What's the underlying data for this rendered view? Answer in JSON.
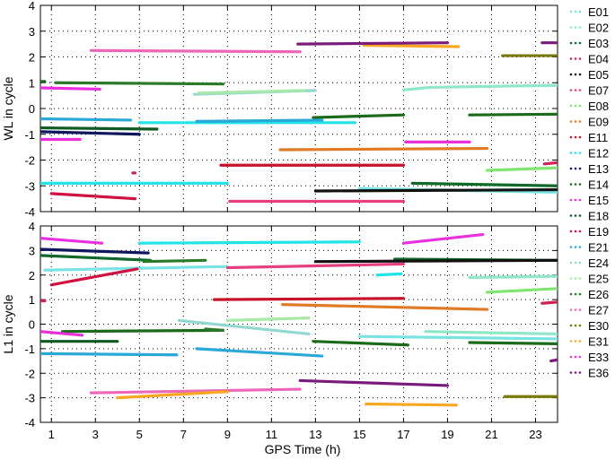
{
  "figure": {
    "xlabel": "GPS Time (h)",
    "xticks": [
      1,
      3,
      5,
      7,
      9,
      11,
      13,
      15,
      17,
      19,
      21,
      23
    ],
    "xlim": [
      0.5,
      24
    ]
  },
  "legend": [
    {
      "name": "E01",
      "color": "#79e2e2"
    },
    {
      "name": "E02",
      "color": "#8ee8c6"
    },
    {
      "name": "E03",
      "color": "#0f6a2a"
    },
    {
      "name": "E04",
      "color": "#cc2255"
    },
    {
      "name": "E05",
      "color": "#111111"
    },
    {
      "name": "E07",
      "color": "#e63f80"
    },
    {
      "name": "E08",
      "color": "#7ee66e"
    },
    {
      "name": "E09",
      "color": "#e07a25"
    },
    {
      "name": "E11",
      "color": "#c8122a"
    },
    {
      "name": "E12",
      "color": "#22e3e8"
    },
    {
      "name": "E13",
      "color": "#10165e"
    },
    {
      "name": "E14",
      "color": "#1a6a1a"
    },
    {
      "name": "E15",
      "color": "#e830d8"
    },
    {
      "name": "E18",
      "color": "#0e5a23"
    },
    {
      "name": "E19",
      "color": "#d01040"
    },
    {
      "name": "E21",
      "color": "#2aa8d8"
    },
    {
      "name": "E24",
      "color": "#90d8d0"
    },
    {
      "name": "E25",
      "color": "#a8e8a8"
    },
    {
      "name": "E26",
      "color": "#2a7a2a"
    },
    {
      "name": "E27",
      "color": "#ee66b8"
    },
    {
      "name": "E30",
      "color": "#7a7a0a"
    },
    {
      "name": "E31",
      "color": "#f8a820"
    },
    {
      "name": "E33",
      "color": "#e830e0"
    },
    {
      "name": "E36",
      "color": "#7a1a7a"
    }
  ],
  "chart_data": [
    {
      "type": "scatter",
      "title": "",
      "xlabel": "",
      "ylabel": "WL in cycle",
      "xlim": [
        0.5,
        24
      ],
      "ylim": [
        -4,
        4
      ],
      "yticks": [
        -4,
        -3,
        -2,
        -1,
        0,
        1,
        2,
        3,
        4
      ],
      "grid": true,
      "series": [
        {
          "name": "E01",
          "segments": [
            [
              [
                15.0,
                -3.1
              ],
              [
                24.0,
                -3.25
              ]
            ]
          ]
        },
        {
          "name": "E02",
          "segments": [
            [
              [
                17.0,
                0.72
              ],
              [
                18.2,
                0.82
              ]
            ],
            [
              [
                18.2,
                0.82
              ],
              [
                24.0,
                0.9
              ]
            ]
          ]
        },
        {
          "name": "E03",
          "segments": [
            [
              [
                17.4,
                -2.9
              ],
              [
                24.0,
                -3.0
              ]
            ]
          ]
        },
        {
          "name": "E04",
          "segments": [
            [
              [
                4.7,
                -2.5
              ],
              [
                4.8,
                -2.5
              ]
            ],
            [
              [
                23.4,
                -2.15
              ],
              [
                24.0,
                -2.1
              ]
            ]
          ]
        },
        {
          "name": "E05",
          "segments": [
            [
              [
                13.0,
                -3.2
              ],
              [
                24.0,
                -3.15
              ]
            ]
          ]
        },
        {
          "name": "E07",
          "segments": [
            [
              [
                9.1,
                -3.6
              ],
              [
                17.0,
                -3.6
              ]
            ]
          ]
        },
        {
          "name": "E08",
          "segments": [
            [
              [
                20.8,
                -2.4
              ],
              [
                24.0,
                -2.3
              ]
            ]
          ]
        },
        {
          "name": "E09",
          "segments": [
            [
              [
                11.4,
                -1.6
              ],
              [
                20.8,
                -1.55
              ]
            ]
          ]
        },
        {
          "name": "E11",
          "segments": [
            [
              [
                8.7,
                -2.2
              ],
              [
                17.0,
                -2.2
              ]
            ]
          ]
        },
        {
          "name": "E12",
          "segments": [
            [
              [
                0.5,
                -2.9
              ],
              [
                9.0,
                -2.9
              ]
            ]
          ]
        },
        {
          "name": "E13",
          "segments": [
            [
              [
                0.5,
                -0.9
              ],
              [
                5.0,
                -1.0
              ]
            ]
          ]
        },
        {
          "name": "E14",
          "segments": [
            [
              [
                0.5,
                1.05
              ],
              [
                0.7,
                1.05
              ]
            ],
            [
              [
                12.9,
                -0.35
              ],
              [
                17.0,
                -0.25
              ]
            ],
            [
              [
                20.0,
                -0.25
              ],
              [
                24.0,
                -0.22
              ]
            ]
          ]
        },
        {
          "name": "E15",
          "segments": [
            [
              [
                0.5,
                -1.2
              ],
              [
                2.3,
                -1.2
              ]
            ],
            [
              [
                17.1,
                -1.3
              ],
              [
                20.0,
                -1.3
              ]
            ]
          ]
        },
        {
          "name": "E18",
          "segments": [
            [
              [
                0.5,
                -0.75
              ],
              [
                5.8,
                -0.8
              ]
            ]
          ]
        },
        {
          "name": "E19",
          "segments": [
            [
              [
                1.0,
                -3.3
              ],
              [
                4.8,
                -3.5
              ]
            ]
          ]
        },
        {
          "name": "E21",
          "segments": [
            [
              [
                0.5,
                -0.4
              ],
              [
                4.6,
                -0.45
              ]
            ]
          ]
        },
        {
          "name": "E24",
          "segments": [
            [
              [
                7.5,
                0.55
              ],
              [
                13.0,
                0.7
              ]
            ]
          ]
        },
        {
          "name": "E25",
          "segments": [
            [
              [
                7.7,
                0.6
              ],
              [
                12.5,
                0.7
              ]
            ]
          ]
        },
        {
          "name": "E26",
          "segments": [
            [
              [
                1.2,
                1.0
              ],
              [
                8.8,
                0.95
              ]
            ]
          ]
        },
        {
          "name": "E27",
          "segments": [
            [
              [
                2.8,
                2.25
              ],
              [
                12.3,
                2.2
              ]
            ]
          ]
        },
        {
          "name": "E30",
          "segments": [
            [
              [
                21.5,
                2.05
              ],
              [
                24.0,
                2.05
              ]
            ]
          ]
        },
        {
          "name": "E31",
          "segments": [
            [
              [
                15.2,
                2.45
              ],
              [
                19.5,
                2.4
              ]
            ]
          ]
        },
        {
          "name": "E33",
          "segments": [
            [
              [
                0.5,
                0.8
              ],
              [
                3.2,
                0.75
              ]
            ]
          ]
        },
        {
          "name": "E36",
          "segments": [
            [
              [
                12.2,
                2.5
              ],
              [
                19.0,
                2.55
              ]
            ],
            [
              [
                23.3,
                2.55
              ],
              [
                24.0,
                2.55
              ]
            ]
          ]
        },
        {
          "name": "E12",
          "segments": [
            [
              [
                5.0,
                -0.55
              ],
              [
                14.8,
                -0.55
              ]
            ]
          ]
        },
        {
          "name": "E21",
          "segments": [
            [
              [
                7.6,
                -0.5
              ],
              [
                13.3,
                -0.45
              ]
            ]
          ]
        }
      ]
    },
    {
      "type": "scatter",
      "title": "",
      "xlabel": "GPS Time (h)",
      "ylabel": "L1 in cycle",
      "xlim": [
        0.5,
        24
      ],
      "ylim": [
        -4,
        4
      ],
      "yticks": [
        -4,
        -3,
        -2,
        -1,
        0,
        1,
        2,
        3,
        4
      ],
      "grid": true,
      "series": [
        {
          "name": "E01",
          "segments": [
            [
              [
                0.7,
                2.2
              ],
              [
                9.0,
                2.35
              ]
            ],
            [
              [
                15.0,
                -0.5
              ],
              [
                24.0,
                -0.6
              ]
            ]
          ]
        },
        {
          "name": "E02",
          "segments": [
            [
              [
                18.0,
                -0.3
              ],
              [
                24.0,
                -0.4
              ]
            ],
            [
              [
                20.0,
                1.9
              ],
              [
                24.0,
                1.95
              ]
            ]
          ]
        },
        {
          "name": "E03",
          "segments": [
            [
              [
                0.5,
                2.8
              ],
              [
                5.5,
                2.6
              ]
            ],
            [
              [
                16.6,
                2.65
              ],
              [
                24.0,
                2.6
              ]
            ]
          ]
        },
        {
          "name": "E04",
          "segments": [
            [
              [
                0.5,
                0.95
              ],
              [
                0.7,
                0.95
              ]
            ],
            [
              [
                23.3,
                0.85
              ],
              [
                24.0,
                0.9
              ]
            ]
          ]
        },
        {
          "name": "E05",
          "segments": [
            [
              [
                13.0,
                2.55
              ],
              [
                24.0,
                2.6
              ]
            ]
          ]
        },
        {
          "name": "E07",
          "segments": [
            [
              [
                9.0,
                2.3
              ],
              [
                17.0,
                2.45
              ]
            ]
          ]
        },
        {
          "name": "E08",
          "segments": [
            [
              [
                20.8,
                1.3
              ],
              [
                24.0,
                1.45
              ]
            ]
          ]
        },
        {
          "name": "E09",
          "segments": [
            [
              [
                11.5,
                0.8
              ],
              [
                20.8,
                0.6
              ]
            ]
          ]
        },
        {
          "name": "E11",
          "segments": [
            [
              [
                8.4,
                1.0
              ],
              [
                17.0,
                1.05
              ]
            ]
          ]
        },
        {
          "name": "E12",
          "segments": [
            [
              [
                5.0,
                3.3
              ],
              [
                15.0,
                3.35
              ]
            ],
            [
              [
                15.8,
                2.0
              ],
              [
                16.9,
                2.05
              ]
            ]
          ]
        },
        {
          "name": "E13",
          "segments": [
            [
              [
                0.5,
                3.05
              ],
              [
                5.4,
                2.9
              ]
            ]
          ]
        },
        {
          "name": "E14",
          "segments": [
            [
              [
                1.5,
                -0.3
              ],
              [
                8.8,
                -0.25
              ]
            ],
            [
              [
                12.9,
                -0.7
              ],
              [
                17.2,
                -0.85
              ]
            ],
            [
              [
                20.0,
                -0.75
              ],
              [
                24.0,
                -0.8
              ]
            ]
          ]
        },
        {
          "name": "E15",
          "segments": [
            [
              [
                0.5,
                -0.3
              ],
              [
                2.4,
                -0.45
              ]
            ]
          ]
        },
        {
          "name": "E18",
          "segments": [
            [
              [
                0.5,
                -0.7
              ],
              [
                4.0,
                -0.7
              ]
            ]
          ]
        },
        {
          "name": "E19",
          "segments": [
            [
              [
                1.0,
                1.6
              ],
              [
                4.9,
                2.25
              ]
            ]
          ]
        },
        {
          "name": "E21",
          "segments": [
            [
              [
                0.5,
                -1.2
              ],
              [
                6.7,
                -1.25
              ]
            ]
          ]
        },
        {
          "name": "E24",
          "segments": [
            [
              [
                6.8,
                0.15
              ],
              [
                12.7,
                -0.4
              ]
            ]
          ]
        },
        {
          "name": "E25",
          "segments": [
            [
              [
                9.0,
                0.15
              ],
              [
                12.7,
                0.25
              ]
            ]
          ]
        },
        {
          "name": "E26",
          "segments": [
            [
              [
                5.2,
                2.55
              ],
              [
                8.0,
                2.6
              ]
            ],
            [
              [
                8.0,
                -0.2
              ],
              [
                8.8,
                -0.25
              ]
            ]
          ]
        },
        {
          "name": "E27",
          "segments": [
            [
              [
                2.8,
                -2.8
              ],
              [
                12.3,
                -2.65
              ]
            ]
          ]
        },
        {
          "name": "E30",
          "segments": [
            [
              [
                21.6,
                -2.95
              ],
              [
                24.0,
                -2.95
              ]
            ]
          ]
        },
        {
          "name": "E31",
          "segments": [
            [
              [
                4.0,
                -3.0
              ],
              [
                9.0,
                -2.75
              ]
            ],
            [
              [
                15.3,
                -3.25
              ],
              [
                19.4,
                -3.3
              ]
            ]
          ]
        },
        {
          "name": "E33",
          "segments": [
            [
              [
                0.5,
                3.5
              ],
              [
                3.3,
                3.3
              ]
            ],
            [
              [
                17.0,
                3.3
              ],
              [
                20.6,
                3.65
              ]
            ]
          ]
        },
        {
          "name": "E36",
          "segments": [
            [
              [
                12.3,
                -2.3
              ],
              [
                19.0,
                -2.5
              ]
            ],
            [
              [
                23.7,
                -1.5
              ],
              [
                24.0,
                -1.45
              ]
            ]
          ]
        },
        {
          "name": "E21",
          "segments": [
            [
              [
                7.6,
                -1.0
              ],
              [
                13.3,
                -1.3
              ]
            ]
          ]
        }
      ]
    }
  ]
}
